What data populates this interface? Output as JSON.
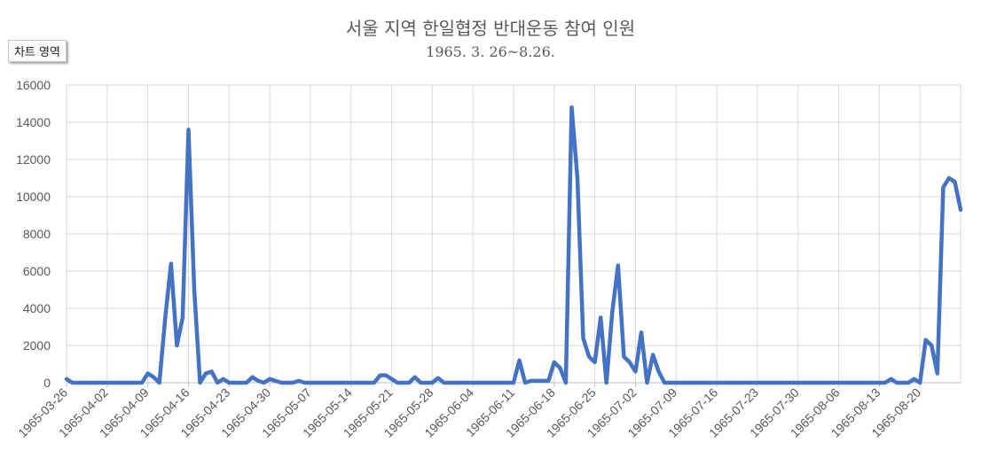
{
  "button": {
    "chart_area_label": "차트 영역"
  },
  "chart_data": {
    "type": "line",
    "title": "서울 지역 한일협정 반대운동 참여 인원",
    "subtitle": "1965. 3. 26~8.26.",
    "xlabel": "",
    "ylabel": "",
    "ylim": [
      0,
      16000
    ],
    "yticks": [
      0,
      2000,
      4000,
      6000,
      8000,
      10000,
      12000,
      14000,
      16000
    ],
    "xticks": [
      "1965-03-26",
      "1965-04-02",
      "1965-04-09",
      "1965-04-16",
      "1965-04-23",
      "1965-04-30",
      "1965-05-07",
      "1965-05-14",
      "1965-05-21",
      "1965-05-28",
      "1965-06-04",
      "1965-06-11",
      "1965-06-18",
      "1965-06-25",
      "1965-07-02",
      "1965-07-09",
      "1965-07-16",
      "1965-07-23",
      "1965-07-30",
      "1965-08-06",
      "1965-08-13",
      "1965-08-20"
    ],
    "grid": true,
    "legend": "none",
    "color": "#4472C4",
    "series": [
      {
        "points": [
          [
            "1965-03-26",
            200
          ],
          [
            "1965-03-27",
            0
          ],
          [
            "1965-04-08",
            0
          ],
          [
            "1965-04-09",
            500
          ],
          [
            "1965-04-10",
            300
          ],
          [
            "1965-04-11",
            0
          ],
          [
            "1965-04-12",
            3500
          ],
          [
            "1965-04-13",
            6400
          ],
          [
            "1965-04-14",
            2000
          ],
          [
            "1965-04-15",
            3500
          ],
          [
            "1965-04-16",
            13600
          ],
          [
            "1965-04-17",
            5000
          ],
          [
            "1965-04-18",
            0
          ],
          [
            "1965-04-19",
            500
          ],
          [
            "1965-04-20",
            600
          ],
          [
            "1965-04-21",
            0
          ],
          [
            "1965-04-22",
            200
          ],
          [
            "1965-04-23",
            0
          ],
          [
            "1965-04-26",
            0
          ],
          [
            "1965-04-27",
            300
          ],
          [
            "1965-04-28",
            100
          ],
          [
            "1965-04-29",
            0
          ],
          [
            "1965-04-30",
            200
          ],
          [
            "1965-05-01",
            100
          ],
          [
            "1965-05-02",
            0
          ],
          [
            "1965-05-04",
            0
          ],
          [
            "1965-05-05",
            100
          ],
          [
            "1965-05-06",
            0
          ],
          [
            "1965-05-18",
            0
          ],
          [
            "1965-05-19",
            400
          ],
          [
            "1965-05-20",
            400
          ],
          [
            "1965-05-21",
            200
          ],
          [
            "1965-05-22",
            0
          ],
          [
            "1965-05-24",
            0
          ],
          [
            "1965-05-25",
            300
          ],
          [
            "1965-05-26",
            0
          ],
          [
            "1965-05-28",
            0
          ],
          [
            "1965-05-29",
            250
          ],
          [
            "1965-05-30",
            0
          ],
          [
            "1965-06-11",
            0
          ],
          [
            "1965-06-12",
            1200
          ],
          [
            "1965-06-13",
            0
          ],
          [
            "1965-06-14",
            100
          ],
          [
            "1965-06-17",
            100
          ],
          [
            "1965-06-18",
            1100
          ],
          [
            "1965-06-19",
            800
          ],
          [
            "1965-06-20",
            0
          ],
          [
            "1965-06-21",
            14800
          ],
          [
            "1965-06-22",
            11000
          ],
          [
            "1965-06-23",
            2400
          ],
          [
            "1965-06-24",
            1400
          ],
          [
            "1965-06-25",
            1100
          ],
          [
            "1965-06-26",
            3500
          ],
          [
            "1965-06-27",
            0
          ],
          [
            "1965-06-28",
            3800
          ],
          [
            "1965-06-29",
            6300
          ],
          [
            "1965-06-30",
            1400
          ],
          [
            "1965-07-01",
            1100
          ],
          [
            "1965-07-02",
            600
          ],
          [
            "1965-07-03",
            2700
          ],
          [
            "1965-07-04",
            0
          ],
          [
            "1965-07-05",
            1500
          ],
          [
            "1965-07-06",
            600
          ],
          [
            "1965-07-07",
            0
          ],
          [
            "1965-08-14",
            0
          ],
          [
            "1965-08-15",
            200
          ],
          [
            "1965-08-16",
            0
          ],
          [
            "1965-08-18",
            0
          ],
          [
            "1965-08-19",
            200
          ],
          [
            "1965-08-20",
            0
          ],
          [
            "1965-08-21",
            2300
          ],
          [
            "1965-08-22",
            2000
          ],
          [
            "1965-08-23",
            500
          ],
          [
            "1965-08-24",
            10500
          ],
          [
            "1965-08-25",
            11000
          ],
          [
            "1965-08-26",
            10800
          ],
          [
            "1965-08-27",
            9300
          ]
        ]
      }
    ]
  }
}
